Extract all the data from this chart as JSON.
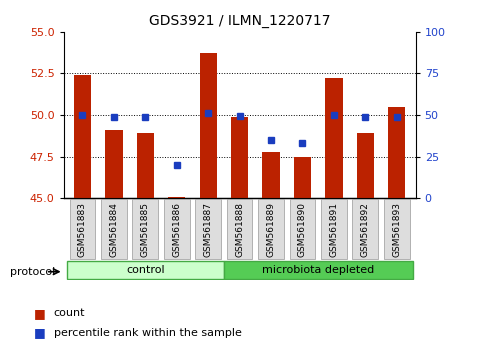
{
  "title": "GDS3921 / ILMN_1220717",
  "samples": [
    "GSM561883",
    "GSM561884",
    "GSM561885",
    "GSM561886",
    "GSM561887",
    "GSM561888",
    "GSM561889",
    "GSM561890",
    "GSM561891",
    "GSM561892",
    "GSM561893"
  ],
  "count_values": [
    52.4,
    49.1,
    48.9,
    45.1,
    53.7,
    49.9,
    47.8,
    47.5,
    52.2,
    48.9,
    50.5
  ],
  "percentile_values": [
    50,
    49,
    49,
    20,
    51,
    49.5,
    35,
    33,
    50,
    49,
    49
  ],
  "ylim_left": [
    45,
    55
  ],
  "ylim_right": [
    0,
    100
  ],
  "yticks_left": [
    45,
    47.5,
    50,
    52.5,
    55
  ],
  "yticks_right": [
    0,
    25,
    50,
    75,
    100
  ],
  "bar_color": "#bb2200",
  "dot_color": "#1a3dbf",
  "bar_bottom": 45,
  "grid_lines": [
    47.5,
    50,
    52.5
  ],
  "groups": [
    {
      "label": "control",
      "start": 0,
      "end": 5,
      "color": "#ccffcc"
    },
    {
      "label": "microbiota depleted",
      "start": 5,
      "end": 11,
      "color": "#55cc55"
    }
  ],
  "legend_items": [
    {
      "label": "count",
      "color": "#bb2200"
    },
    {
      "label": "percentile rank within the sample",
      "color": "#1a3dbf"
    }
  ],
  "protocol_label": "protocol",
  "bg_color": "#ffffff",
  "tick_label_color_left": "#cc2200",
  "tick_label_color_right": "#2244cc",
  "xtick_box_color": "#dddddd",
  "xtick_box_edge": "#999999"
}
